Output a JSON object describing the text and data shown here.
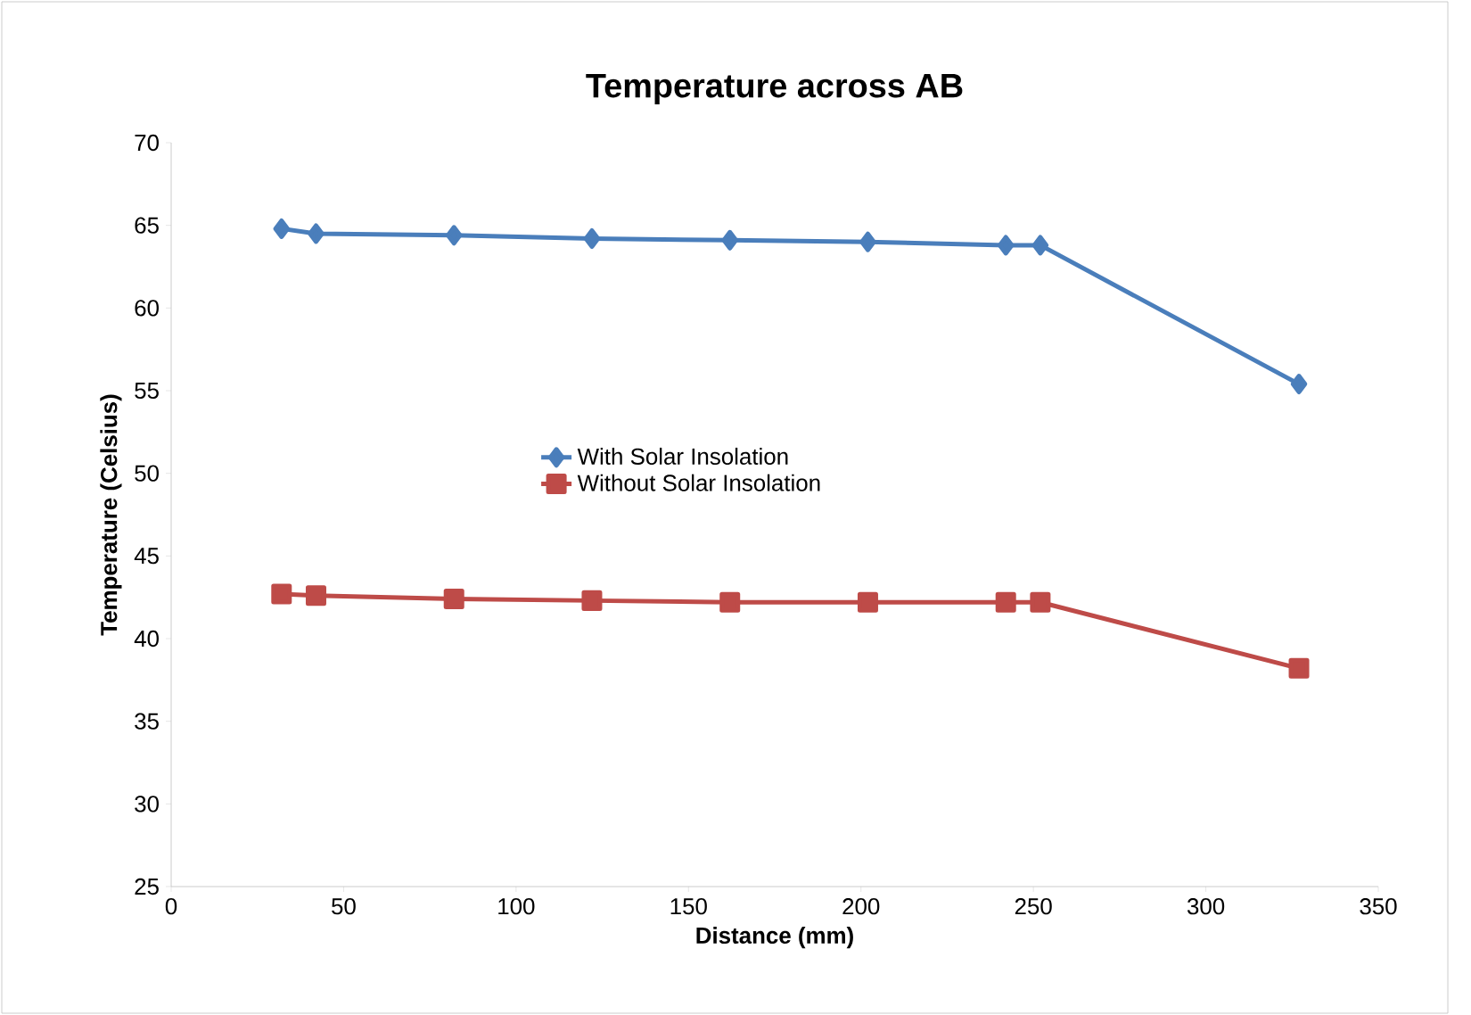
{
  "chart_data": {
    "type": "line",
    "title": "Temperature across AB",
    "xlabel": "Distance (mm)",
    "ylabel": "Temperature (Celsius)",
    "xlim": [
      0,
      350
    ],
    "xticks": [
      0,
      50,
      100,
      150,
      200,
      250,
      300,
      350
    ],
    "ylim": [
      25,
      70
    ],
    "yticks": [
      25,
      30,
      35,
      40,
      45,
      50,
      55,
      60,
      65,
      70
    ],
    "grid": false,
    "legend": "center",
    "series": [
      {
        "name": "With Solar Insolation",
        "color": "#4a7ebb",
        "marker": "diamond",
        "x": [
          32,
          42,
          82,
          122,
          162,
          202,
          242,
          252,
          327
        ],
        "values": [
          64.8,
          64.5,
          64.4,
          64.2,
          64.1,
          64.0,
          63.8,
          63.8,
          55.4
        ]
      },
      {
        "name": "Without Solar Insolation",
        "color": "#be4b48",
        "marker": "square",
        "x": [
          32,
          42,
          82,
          122,
          162,
          202,
          242,
          252,
          327
        ],
        "values": [
          42.7,
          42.6,
          42.4,
          42.3,
          42.2,
          42.2,
          42.2,
          42.2,
          38.2
        ]
      }
    ]
  }
}
